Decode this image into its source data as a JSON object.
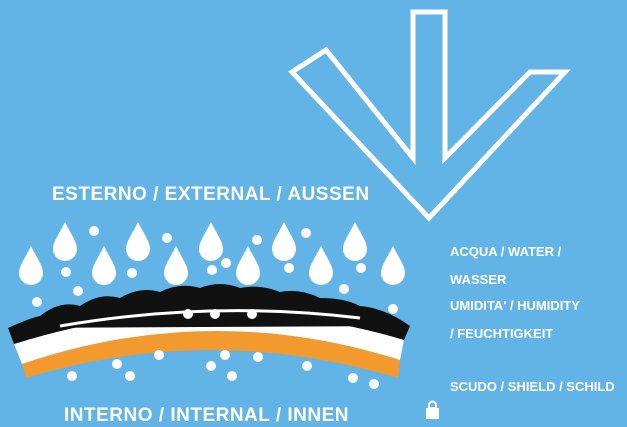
{
  "labels": {
    "external": "ESTERNO / EXTERNAL / AUSSEN",
    "internal": "INTERNO / INTERNAL / INNEN"
  },
  "legend": {
    "line1": "ACQUA / WATER /",
    "line2": "WASSER",
    "line3": "UMIDITA' / HUMIDITY",
    "line4": "/ FEUCHTIGKEIT",
    "line5": "SCUDO / SHIELD / SCHILD"
  },
  "colors": {
    "background": "#62b3e6",
    "white": "#ffffff",
    "black": "#111111",
    "orange": "#f29a2e"
  },
  "icons": [
    "arrow-down-icon",
    "water-drop-icon",
    "humidity-dot-icon",
    "shield-icon"
  ]
}
